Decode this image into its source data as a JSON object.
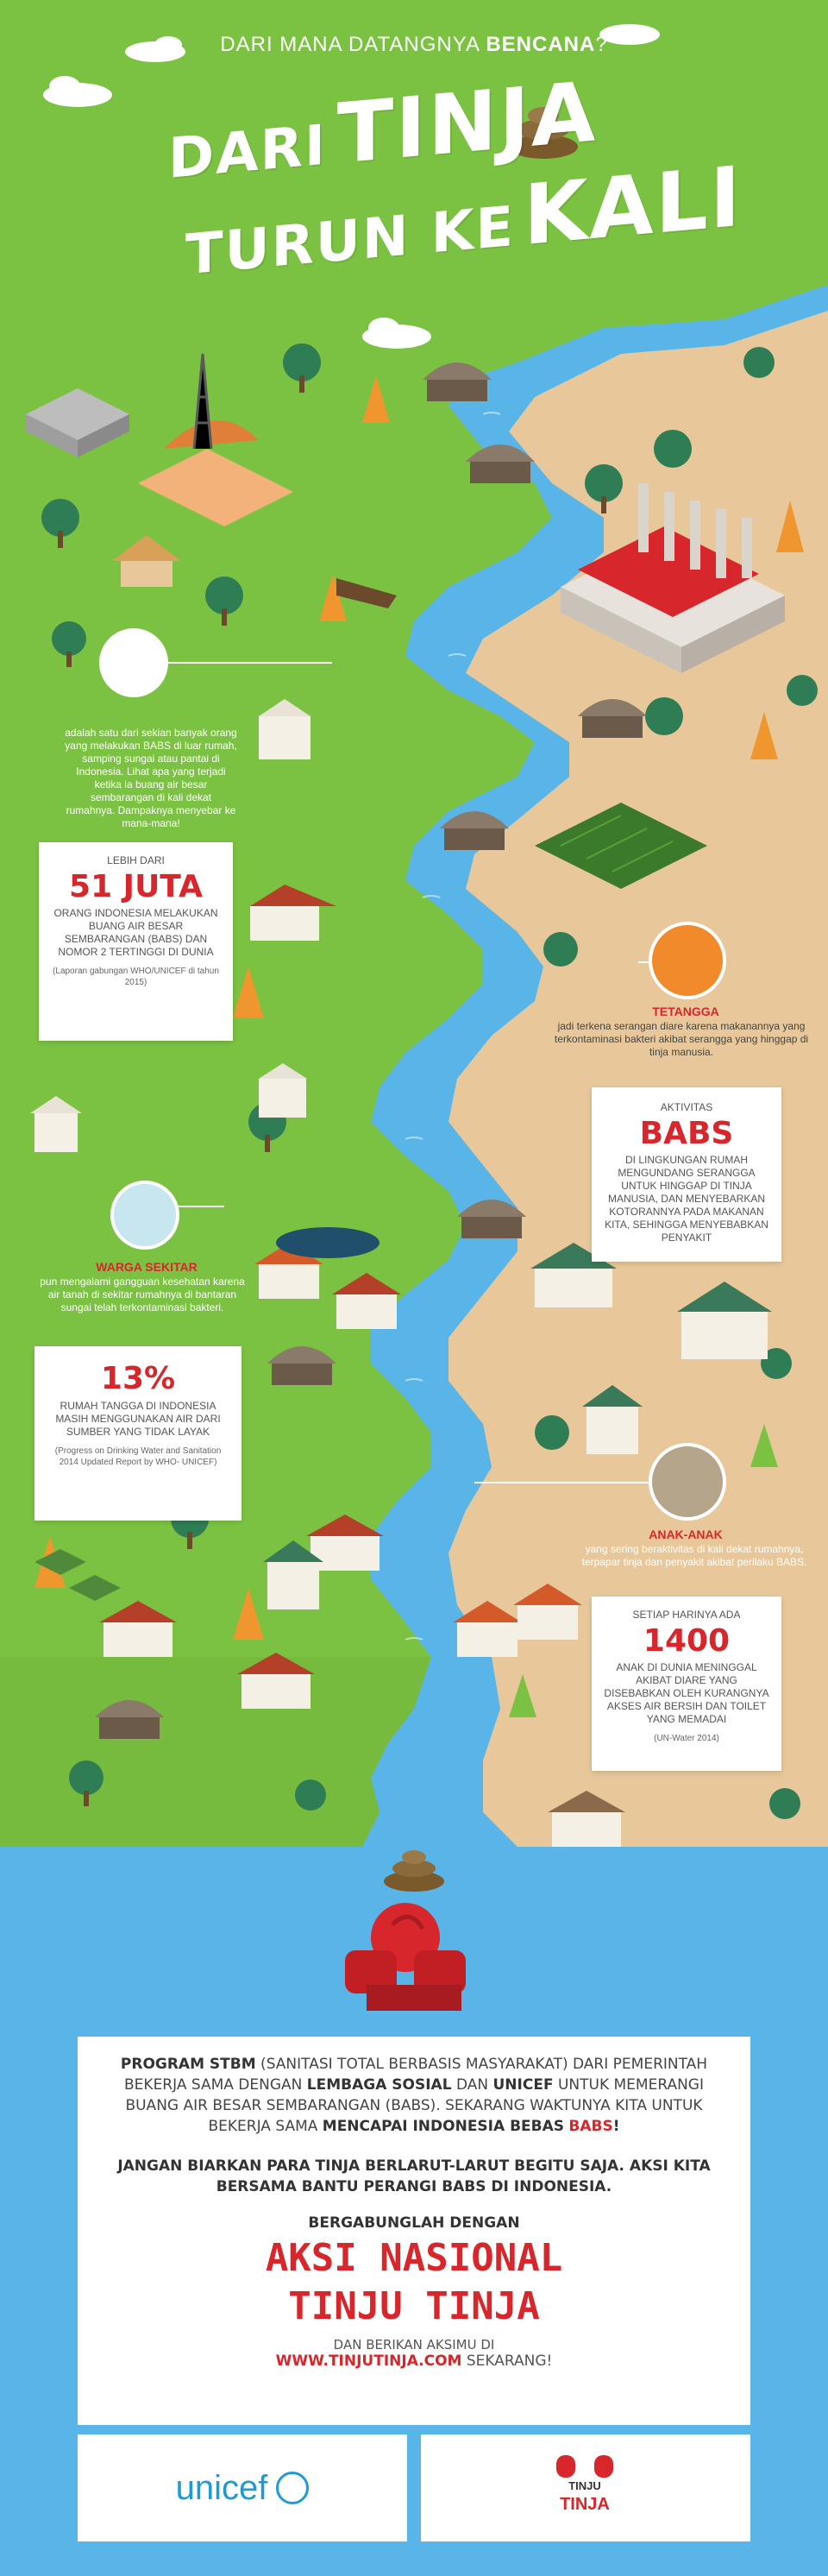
{
  "header": {
    "question_pre": "DARI MANA DATANGNYA",
    "question_bold": "BENCANA",
    "question_post": "?",
    "title_line1_small": "DARI",
    "title_line1_big": "TINJA",
    "title_line2_small": "TURUN KE",
    "title_line2_big": "KALI"
  },
  "intro": {
    "caption": "adalah satu dari sekian banyak orang yang melakukan BABS di luar rumah, samping sungai atau pantai di Indonesia. Lihat apa yang terjadi ketika ia buang air besar sembarangan di kali dekat rumahnya. Dampaknya menyebar ke mana-mana!"
  },
  "stat_51": {
    "pre": "LEBIH DARI",
    "value": "51 JUTA",
    "desc": "ORANG INDONESIA MELAKUKAN BUANG AIR BESAR SEMBARANGAN (BABS) DAN NOMOR 2 TERTINGGI DI DUNIA",
    "source": "(Laporan gabungan WHO/UNICEF di tahun 2015)"
  },
  "tetangga": {
    "label": "TETANGGA",
    "caption": "jadi terkena serangan diare karena makanannya yang terkontaminasi bakteri akibat serangga yang hinggap di tinja manusia."
  },
  "babs": {
    "pre": "AKTIVITAS",
    "value": "BABS",
    "desc": "DI LINGKUNGAN RUMAH MENGUNDANG SERANGGA UNTUK HINGGAP DI TINJA MANUSIA, DAN MENYEBARKAN KOTORANNYA PADA MAKANAN KITA, SEHINGGA MENYEBABKAN PENYAKIT"
  },
  "warga": {
    "label": "WARGA SEKITAR",
    "caption": "pun mengalami gangguan kesehatan karena air tanah di sekitar rumahnya di bantaran sungai telah terkontaminasi bakteri."
  },
  "stat_13": {
    "value": "13%",
    "desc": "RUMAH TANGGA DI INDONESIA MASIH MENGGUNAKAN AIR DARI SUMBER YANG TIDAK LAYAK",
    "source": "(Progress on Drinking Water and Sanitation 2014 Updated Report by WHO- UNICEF)"
  },
  "anak": {
    "label": "ANAK-ANAK",
    "caption": "yang sering beraktivitas di kali dekat rumahnya, terpapar tinja dan penyakit akibat perilaku BABS."
  },
  "stat_1400": {
    "pre": "SETIAP HARINYA ADA",
    "value": "1400",
    "desc": "ANAK DI DUNIA MENINGGAL AKIBAT DIARE YANG DISEBABKAN OLEH KURANGNYA AKSES AIR BERSIH DAN TOILET YANG MEMADAI",
    "source": "(UN-Water 2014)"
  },
  "bottom": {
    "p1_b1": "PROGRAM STBM",
    "p1_t1": " (SANITASI TOTAL BERBASIS MASYARAKAT) DARI PEMERINTAH BEKERJA SAMA DENGAN ",
    "p1_b2": "LEMBAGA SOSIAL",
    "p1_t2": " DAN ",
    "p1_b3": "UNICEF",
    "p1_t3": " UNTUK MEMERANGI BUANG AIR BESAR SEMBARANGAN (BABS). SEKARANG WAKTUNYA KITA UNTUK BEKERJA SAMA ",
    "p1_b4": "MENCAPAI INDONESIA BEBAS",
    "p1_b5": "BABS",
    "p1_t4": "!",
    "p2": "JANGAN BIARKAN PARA TINJA BERLARUT-LARUT BEGITU SAJA. AKSI KITA BERSAMA BANTU PERANGI BABS DI INDONESIA.",
    "join": "BERGABUNGLAH DENGAN",
    "aksi1": "AKSI NASIONAL",
    "aksi2": "TINJU TINJA",
    "sub": "DAN BERIKAN AKSIMU DI",
    "url": "WWW.TINJUTINJA.COM",
    "url_post": " SEKARANG!"
  },
  "logos": {
    "unicef": "unicef",
    "tinju_top": "TINJU",
    "tinju_bottom": "TINJA"
  },
  "colors": {
    "grass": "#7cc242",
    "river": "#59b4e8",
    "sand": "#e8c89a",
    "accent_red": "#d7262c"
  }
}
